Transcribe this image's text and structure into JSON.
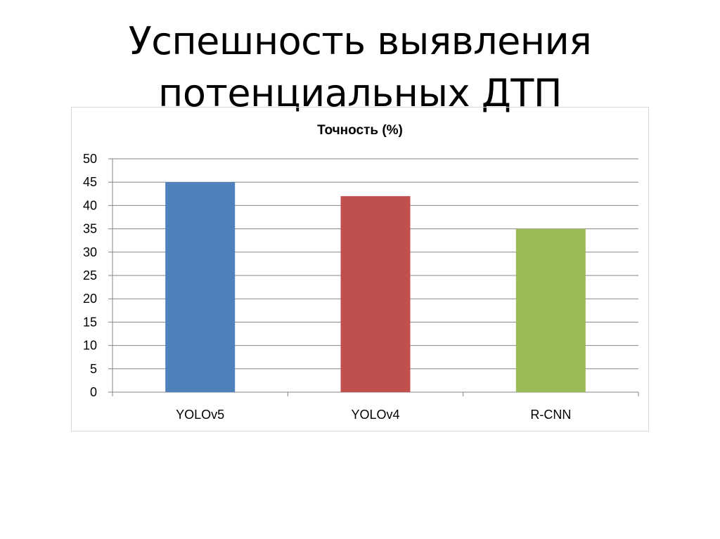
{
  "slide": {
    "title_line1": "Успешность выявления",
    "title_line2": "потенциальных ДТП"
  },
  "chart_data": {
    "type": "bar",
    "title": "Точность (%)",
    "categories": [
      "YOLOv5",
      "YOLOv4",
      "R-CNN"
    ],
    "values": [
      45,
      42,
      35
    ],
    "colors": [
      "#4f81bd",
      "#c0504d",
      "#9bbb59"
    ],
    "xlabel": "",
    "ylabel": "",
    "ylim": [
      0,
      50
    ],
    "yticks": [
      0,
      5,
      10,
      15,
      20,
      25,
      30,
      35,
      40,
      45,
      50
    ],
    "grid": true,
    "legend": "none"
  }
}
